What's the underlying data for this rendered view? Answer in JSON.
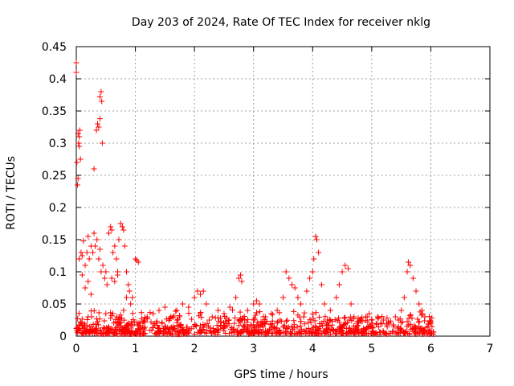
{
  "chart_data": {
    "type": "scatter",
    "title": "Day 203 of 2024, Rate Of TEC Index for receiver nklg",
    "xlabel": "GPS time / hours",
    "ylabel": "ROTI / TECUs",
    "xlim": [
      0,
      7
    ],
    "ylim": [
      0,
      0.45
    ],
    "xticks": [
      0,
      1,
      2,
      3,
      4,
      5,
      6,
      7
    ],
    "yticks": [
      0,
      0.05,
      0.1,
      0.15,
      0.2,
      0.25,
      0.3,
      0.35,
      0.4,
      0.45
    ],
    "xtick_labels": [
      "0",
      "1",
      "2",
      "3",
      "4",
      "5",
      "6",
      "7"
    ],
    "ytick_labels": [
      "0",
      "0.05",
      "0.1",
      "0.15",
      "0.2",
      "0.25",
      "0.3",
      "0.35",
      "0.4",
      "0.45"
    ],
    "grid": true,
    "marker": "plus",
    "color": "#ff0000",
    "series": [
      {
        "name": "ROTI",
        "points": [
          [
            0.0,
            0.425
          ],
          [
            0.0,
            0.41
          ],
          [
            0.01,
            0.27
          ],
          [
            0.02,
            0.235
          ],
          [
            0.03,
            0.245
          ],
          [
            0.03,
            0.315
          ],
          [
            0.04,
            0.3
          ],
          [
            0.05,
            0.31
          ],
          [
            0.05,
            0.295
          ],
          [
            0.06,
            0.32
          ],
          [
            0.07,
            0.275
          ],
          [
            0.3,
            0.26
          ],
          [
            0.34,
            0.32
          ],
          [
            0.36,
            0.33
          ],
          [
            0.38,
            0.325
          ],
          [
            0.4,
            0.338
          ],
          [
            0.4,
            0.372
          ],
          [
            0.42,
            0.38
          ],
          [
            0.43,
            0.365
          ],
          [
            0.44,
            0.3
          ],
          [
            0.05,
            0.12
          ],
          [
            0.08,
            0.13
          ],
          [
            0.1,
            0.125
          ],
          [
            0.12,
            0.148
          ],
          [
            0.15,
            0.11
          ],
          [
            0.18,
            0.13
          ],
          [
            0.2,
            0.155
          ],
          [
            0.22,
            0.12
          ],
          [
            0.25,
            0.14
          ],
          [
            0.28,
            0.13
          ],
          [
            0.3,
            0.16
          ],
          [
            0.32,
            0.14
          ],
          [
            0.35,
            0.15
          ],
          [
            0.38,
            0.12
          ],
          [
            0.4,
            0.135
          ],
          [
            0.42,
            0.1
          ],
          [
            0.45,
            0.11
          ],
          [
            0.48,
            0.09
          ],
          [
            0.5,
            0.1
          ],
          [
            0.52,
            0.08
          ],
          [
            0.55,
            0.16
          ],
          [
            0.58,
            0.17
          ],
          [
            0.6,
            0.165
          ],
          [
            0.62,
            0.13
          ],
          [
            0.65,
            0.14
          ],
          [
            0.68,
            0.12
          ],
          [
            0.7,
            0.1
          ],
          [
            0.72,
            0.15
          ],
          [
            0.75,
            0.175
          ],
          [
            0.78,
            0.17
          ],
          [
            0.8,
            0.165
          ],
          [
            0.82,
            0.14
          ],
          [
            0.85,
            0.1
          ],
          [
            0.88,
            0.08
          ],
          [
            0.9,
            0.07
          ],
          [
            0.95,
            0.06
          ],
          [
            1.0,
            0.12
          ],
          [
            1.02,
            0.118
          ],
          [
            1.05,
            0.115
          ],
          [
            0.1,
            0.095
          ],
          [
            0.15,
            0.075
          ],
          [
            0.2,
            0.085
          ],
          [
            0.25,
            0.065
          ],
          [
            0.6,
            0.09
          ],
          [
            0.65,
            0.085
          ],
          [
            0.7,
            0.095
          ],
          [
            0.85,
            0.06
          ],
          [
            0.92,
            0.05
          ],
          [
            1.06,
            0.02
          ],
          [
            1.1,
            0.01
          ],
          [
            1.2,
            0.03
          ],
          [
            1.3,
            0.035
          ],
          [
            1.4,
            0.04
          ],
          [
            1.5,
            0.045
          ],
          [
            1.6,
            0.03
          ],
          [
            1.7,
            0.04
          ],
          [
            1.8,
            0.05
          ],
          [
            1.9,
            0.045
          ],
          [
            2.0,
            0.06
          ],
          [
            2.05,
            0.07
          ],
          [
            2.1,
            0.065
          ],
          [
            2.15,
            0.07
          ],
          [
            2.2,
            0.05
          ],
          [
            2.3,
            0.03
          ],
          [
            2.4,
            0.04
          ],
          [
            2.5,
            0.035
          ],
          [
            2.6,
            0.045
          ],
          [
            2.7,
            0.06
          ],
          [
            2.75,
            0.09
          ],
          [
            2.78,
            0.095
          ],
          [
            2.8,
            0.085
          ],
          [
            2.9,
            0.04
          ],
          [
            3.0,
            0.05
          ],
          [
            3.05,
            0.055
          ],
          [
            3.1,
            0.05
          ],
          [
            3.2,
            0.03
          ],
          [
            3.3,
            0.035
          ],
          [
            3.4,
            0.04
          ],
          [
            3.5,
            0.06
          ],
          [
            3.55,
            0.1
          ],
          [
            3.6,
            0.09
          ],
          [
            3.65,
            0.08
          ],
          [
            3.7,
            0.075
          ],
          [
            3.75,
            0.06
          ],
          [
            3.8,
            0.05
          ],
          [
            3.9,
            0.07
          ],
          [
            3.95,
            0.09
          ],
          [
            4.0,
            0.1
          ],
          [
            4.02,
            0.12
          ],
          [
            4.05,
            0.155
          ],
          [
            4.07,
            0.15
          ],
          [
            4.1,
            0.13
          ],
          [
            4.15,
            0.08
          ],
          [
            4.2,
            0.05
          ],
          [
            4.3,
            0.04
          ],
          [
            4.4,
            0.06
          ],
          [
            4.45,
            0.08
          ],
          [
            4.5,
            0.1
          ],
          [
            4.55,
            0.11
          ],
          [
            4.6,
            0.105
          ],
          [
            4.65,
            0.05
          ],
          [
            4.7,
            0.03
          ],
          [
            4.8,
            0.025
          ],
          [
            4.9,
            0.03
          ],
          [
            5.0,
            0.025
          ],
          [
            5.1,
            0.03
          ],
          [
            5.2,
            0.025
          ],
          [
            5.3,
            0.02
          ],
          [
            5.4,
            0.03
          ],
          [
            5.5,
            0.04
          ],
          [
            5.55,
            0.06
          ],
          [
            5.6,
            0.1
          ],
          [
            5.62,
            0.115
          ],
          [
            5.65,
            0.11
          ],
          [
            5.7,
            0.09
          ],
          [
            5.75,
            0.07
          ],
          [
            5.8,
            0.05
          ],
          [
            5.85,
            0.04
          ],
          [
            5.9,
            0.03
          ],
          [
            6.0,
            0.02
          ],
          [
            6.02,
            0.015
          ],
          [
            0.2,
            0.03
          ],
          [
            0.5,
            0.035
          ],
          [
            0.8,
            0.04
          ],
          [
            1.15,
            0.025
          ],
          [
            1.45,
            0.02
          ],
          [
            1.75,
            0.03
          ],
          [
            2.25,
            0.025
          ],
          [
            2.55,
            0.02
          ],
          [
            2.85,
            0.025
          ],
          [
            3.15,
            0.02
          ],
          [
            3.45,
            0.025
          ],
          [
            3.85,
            0.03
          ],
          [
            4.25,
            0.025
          ],
          [
            4.75,
            0.02
          ],
          [
            5.15,
            0.02
          ],
          [
            5.45,
            0.025
          ],
          [
            5.95,
            0.015
          ]
        ]
      }
    ]
  }
}
